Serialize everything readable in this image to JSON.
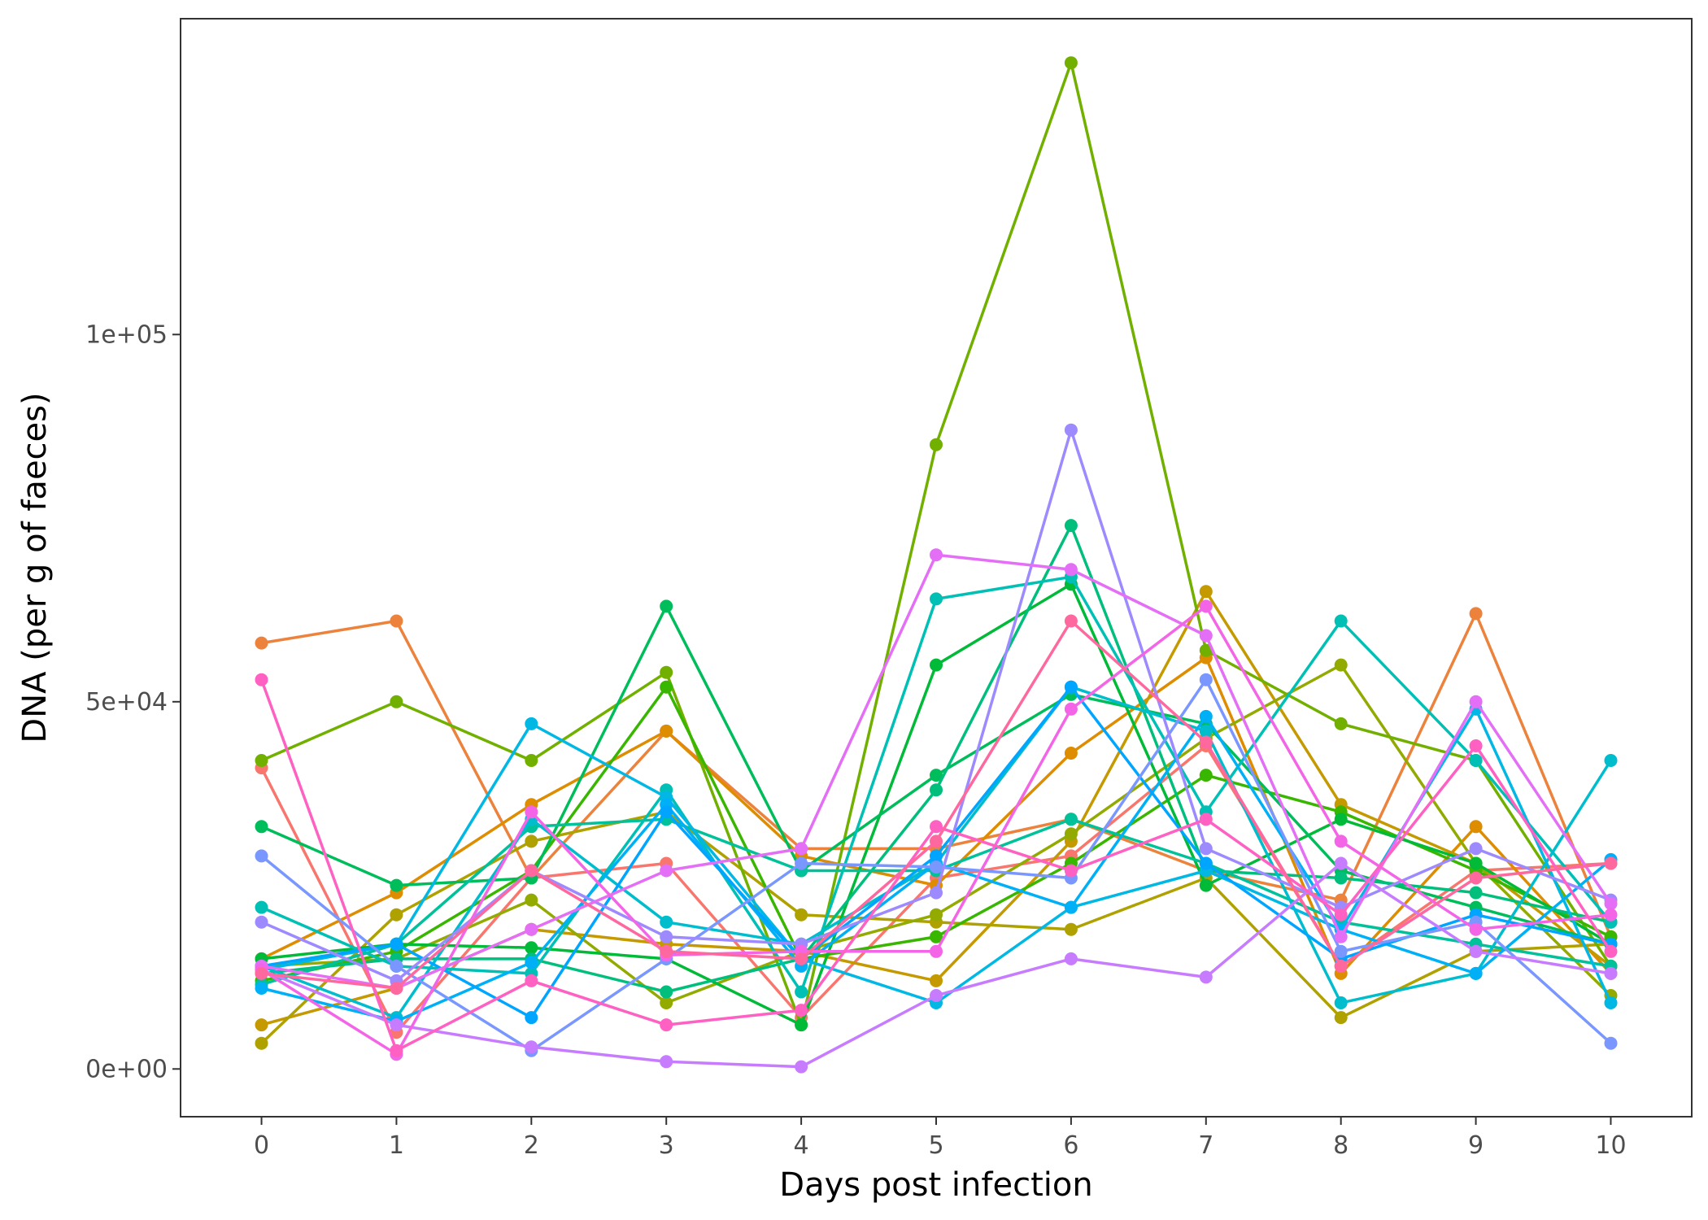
{
  "chart_data": {
    "type": "line",
    "title": "",
    "xlabel": "Days post infection",
    "ylabel": "DNA (per g of faeces)",
    "x": [
      0,
      1,
      2,
      3,
      4,
      5,
      6,
      7,
      8,
      9,
      10
    ],
    "xlim": [
      -0.6,
      10.6
    ],
    "ylim": [
      -6500,
      143000
    ],
    "y_ticks": [
      {
        "value": 0,
        "label": "0e+00"
      },
      {
        "value": 50000,
        "label": "5e+04"
      },
      {
        "value": 100000,
        "label": "1e+05"
      }
    ],
    "x_ticks": [
      {
        "value": 0,
        "label": "0"
      },
      {
        "value": 1,
        "label": "1"
      },
      {
        "value": 2,
        "label": "2"
      },
      {
        "value": 3,
        "label": "3"
      },
      {
        "value": 4,
        "label": "4"
      },
      {
        "value": 5,
        "label": "5"
      },
      {
        "value": 6,
        "label": "6"
      },
      {
        "value": 7,
        "label": "7"
      },
      {
        "value": 8,
        "label": "8"
      },
      {
        "value": 9,
        "label": "9"
      },
      {
        "value": 10,
        "label": "10"
      }
    ],
    "grid": false,
    "legend": "none",
    "series": [
      {
        "color": "#F8766D",
        "values": [
          41000,
          5000,
          26000,
          28000,
          7000,
          26000,
          29000,
          44000,
          14000,
          27000,
          28000
        ]
      },
      {
        "color": "#EC823C",
        "values": [
          58000,
          61000,
          26000,
          46000,
          30000,
          30000,
          34000,
          27000,
          23000,
          62000,
          18000
        ]
      },
      {
        "color": "#DE8C00",
        "values": [
          15000,
          24000,
          36000,
          46000,
          29000,
          25000,
          43000,
          56000,
          13000,
          33000,
          13000
        ]
      },
      {
        "color": "#C59900",
        "values": [
          6000,
          11000,
          19000,
          17000,
          16000,
          12000,
          31000,
          65000,
          36000,
          28000,
          14000
        ]
      },
      {
        "color": "#AFA100",
        "values": [
          3500,
          21000,
          31000,
          35000,
          21000,
          20000,
          19000,
          26000,
          7000,
          16000,
          17000
        ]
      },
      {
        "color": "#93AA00",
        "values": [
          14000,
          15000,
          23000,
          9000,
          16000,
          21000,
          32000,
          45000,
          55000,
          28000,
          10000
        ]
      },
      {
        "color": "#72B000",
        "values": [
          42000,
          50000,
          42000,
          54000,
          6000,
          85000,
          137000,
          57000,
          47000,
          42000,
          14000
        ]
      },
      {
        "color": "#39B600",
        "values": [
          12000,
          16000,
          27000,
          52000,
          15000,
          18000,
          28000,
          40000,
          35000,
          27000,
          18000
        ]
      },
      {
        "color": "#00BA38",
        "values": [
          15000,
          17000,
          16500,
          15000,
          6000,
          55000,
          66000,
          25000,
          34000,
          28000,
          17000
        ]
      },
      {
        "color": "#00BD5C",
        "values": [
          33000,
          25000,
          26000,
          63000,
          27000,
          40000,
          51000,
          47000,
          27000,
          22000,
          17000
        ]
      },
      {
        "color": "#00BF7D",
        "values": [
          13000,
          15000,
          15000,
          10500,
          15000,
          38000,
          74000,
          27000,
          26000,
          24000,
          20000
        ]
      },
      {
        "color": "#00C19A",
        "values": [
          11500,
          17000,
          33000,
          34000,
          27000,
          27000,
          34000,
          28000,
          20000,
          17000,
          14000
        ]
      },
      {
        "color": "#00C0B5",
        "values": [
          22000,
          14000,
          13000,
          38000,
          10500,
          64000,
          67000,
          35000,
          61000,
          42000,
          20000
        ]
      },
      {
        "color": "#00BDCD",
        "values": [
          14000,
          7000,
          34000,
          20000,
          17000,
          28000,
          52000,
          46000,
          9000,
          13000,
          42000
        ]
      },
      {
        "color": "#00B8E3",
        "values": [
          13500,
          17000,
          47000,
          37000,
          15000,
          9000,
          22000,
          27000,
          19000,
          49000,
          9000
        ]
      },
      {
        "color": "#00B0F6",
        "values": [
          11000,
          6500,
          14500,
          36000,
          14000,
          28000,
          22000,
          48000,
          19000,
          13000,
          28500
        ]
      },
      {
        "color": "#00A5FF",
        "values": [
          14000,
          17000,
          7000,
          35000,
          15000,
          29000,
          52000,
          28000,
          15000,
          21000,
          17000
        ]
      },
      {
        "color": "#7997FF",
        "values": [
          29000,
          14000,
          2500,
          15000,
          28000,
          27500,
          26000,
          53000,
          16000,
          20000,
          3500
        ]
      },
      {
        "color": "#9E8AFF",
        "values": [
          20000,
          12000,
          27000,
          18000,
          17000,
          24000,
          87000,
          30000,
          22000,
          30000,
          23000
        ]
      },
      {
        "color": "#C77CFF",
        "values": [
          13500,
          6000,
          3000,
          1000,
          300,
          10000,
          15000,
          12500,
          28000,
          16000,
          13000
        ]
      },
      {
        "color": "#E46FF6",
        "values": [
          14000,
          11000,
          19000,
          27000,
          30000,
          70000,
          68000,
          59000,
          18000,
          50000,
          22500
        ]
      },
      {
        "color": "#F365E6",
        "values": [
          13500,
          2000,
          35000,
          15500,
          16000,
          16000,
          49000,
          63000,
          31000,
          19000,
          21000
        ]
      },
      {
        "color": "#FF61C3",
        "values": [
          53000,
          2500,
          12000,
          6000,
          8000,
          33000,
          27000,
          34000,
          21000,
          44000,
          16000
        ]
      },
      {
        "color": "#FF689F",
        "values": [
          13000,
          11000,
          27000,
          16000,
          15000,
          31000,
          61000,
          44500,
          14000,
          26000,
          28000
        ]
      }
    ]
  }
}
